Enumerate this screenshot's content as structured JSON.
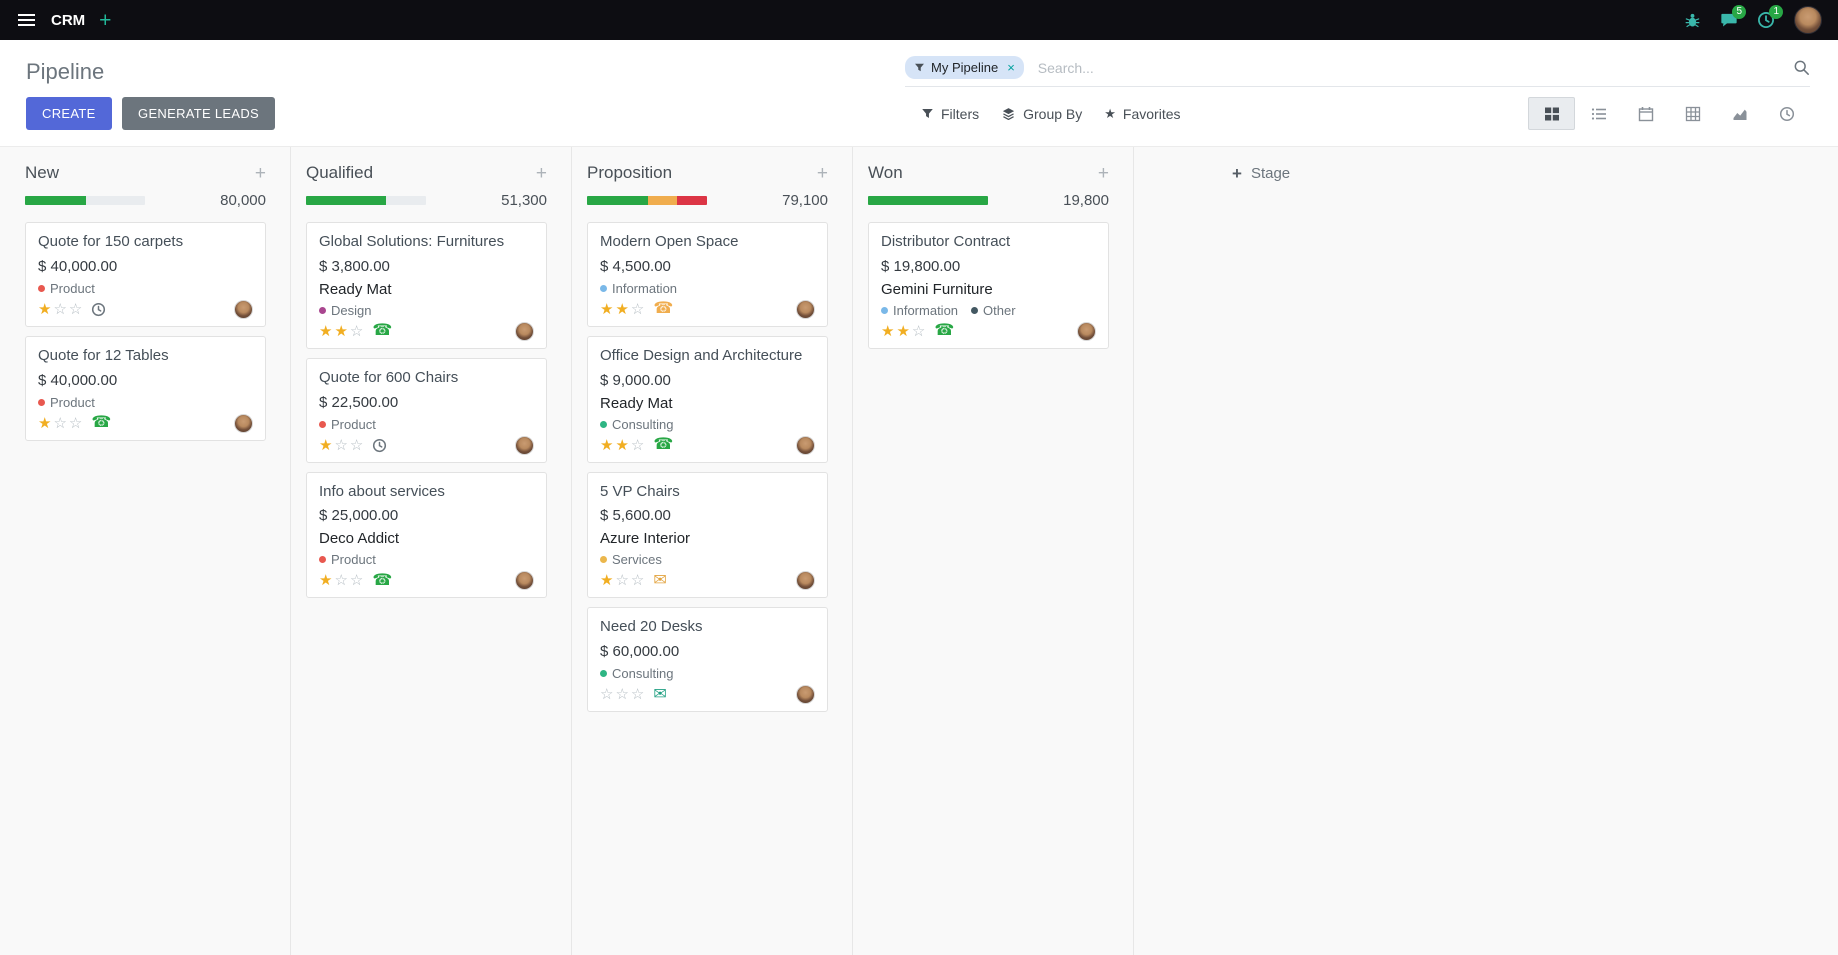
{
  "topbar": {
    "app_name": "CRM",
    "messages_badge": "5",
    "activities_badge": "1"
  },
  "control_panel": {
    "title": "Pipeline",
    "create_label": "CREATE",
    "generate_leads_label": "GENERATE LEADS",
    "filters_label": "Filters",
    "group_by_label": "Group By",
    "favorites_label": "Favorites",
    "search": {
      "facet_label": "My Pipeline",
      "remove_facet": "×",
      "placeholder": "Search..."
    }
  },
  "icon_glyphs": {
    "phone": "☎",
    "envelope": "✉"
  },
  "colors": {
    "progress_green": "#28a745",
    "progress_yellow": "#f0ad4e",
    "progress_red": "#dc3545",
    "primary_button": "#5368d8",
    "badge_green": "#28a745",
    "topbar_icon_teal": "#3ab7ab"
  },
  "kanban": {
    "add_stage_label": "Stage",
    "stages": [
      {
        "name": "New",
        "counter": "80,000",
        "progress": [
          {
            "color": "#28a745",
            "pct": 51
          }
        ],
        "cards": [
          {
            "title": "Quote for 150 carpets",
            "amount": "$ 40,000.00",
            "tags": [
              {
                "label": "Product",
                "color": "#e8584f"
              }
            ],
            "stars": 1,
            "activity": {
              "type": "clock",
              "color": "#6c757d"
            }
          },
          {
            "title": "Quote for 12 Tables",
            "amount": "$ 40,000.00",
            "tags": [
              {
                "label": "Product",
                "color": "#e8584f"
              }
            ],
            "stars": 1,
            "activity": {
              "type": "phone",
              "color": "#28a745"
            }
          }
        ]
      },
      {
        "name": "Qualified",
        "counter": "51,300",
        "progress": [
          {
            "color": "#28a745",
            "pct": 67
          }
        ],
        "cards": [
          {
            "title": "Global Solutions: Furnitures",
            "amount": "$ 3,800.00",
            "company": "Ready Mat",
            "tags": [
              {
                "label": "Design",
                "color": "#a9468f"
              }
            ],
            "stars": 2,
            "activity": {
              "type": "phone",
              "color": "#28a745"
            }
          },
          {
            "title": "Quote for 600 Chairs",
            "amount": "$ 22,500.00",
            "tags": [
              {
                "label": "Product",
                "color": "#e8584f"
              }
            ],
            "stars": 1,
            "activity": {
              "type": "clock",
              "color": "#6c757d"
            }
          },
          {
            "title": "Info about services",
            "amount": "$ 25,000.00",
            "company": "Deco Addict",
            "tags": [
              {
                "label": "Product",
                "color": "#e8584f"
              }
            ],
            "stars": 1,
            "activity": {
              "type": "phone",
              "color": "#28a745"
            }
          }
        ]
      },
      {
        "name": "Proposition",
        "counter": "79,100",
        "progress": [
          {
            "color": "#28a745",
            "pct": 51
          },
          {
            "color": "#f0ad4e",
            "pct": 24
          },
          {
            "color": "#dc3545",
            "pct": 25
          }
        ],
        "cards": [
          {
            "title": "Modern Open Space",
            "amount": "$ 4,500.00",
            "tags": [
              {
                "label": "Information",
                "color": "#7ab8e8"
              }
            ],
            "stars": 2,
            "activity": {
              "type": "phone",
              "color": "#f0ad4e"
            }
          },
          {
            "title": "Office Design and Architecture",
            "amount": "$ 9,000.00",
            "company": "Ready Mat",
            "tags": [
              {
                "label": "Consulting",
                "color": "#2eb583"
              }
            ],
            "stars": 2,
            "activity": {
              "type": "phone",
              "color": "#28a745"
            }
          },
          {
            "title": "5 VP Chairs",
            "amount": "$ 5,600.00",
            "company": "Azure Interior",
            "tags": [
              {
                "label": "Services",
                "color": "#ebb74c"
              }
            ],
            "stars": 1,
            "activity": {
              "type": "envelope",
              "color": "#e2a33e"
            }
          },
          {
            "title": "Need 20 Desks",
            "amount": "$ 60,000.00",
            "tags": [
              {
                "label": "Consulting",
                "color": "#2eb583"
              }
            ],
            "stars": 0,
            "activity": {
              "type": "envelope",
              "color": "#21a083"
            }
          }
        ]
      },
      {
        "name": "Won",
        "counter": "19,800",
        "progress": [
          {
            "color": "#28a745",
            "pct": 100
          }
        ],
        "cards": [
          {
            "title": "Distributor Contract",
            "amount": "$ 19,800.00",
            "company": "Gemini Furniture",
            "tags": [
              {
                "label": "Information",
                "color": "#7ab8e8"
              },
              {
                "label": "Other",
                "color": "#435862"
              }
            ],
            "stars": 2,
            "activity": {
              "type": "phone",
              "color": "#28a745"
            }
          }
        ]
      }
    ]
  }
}
